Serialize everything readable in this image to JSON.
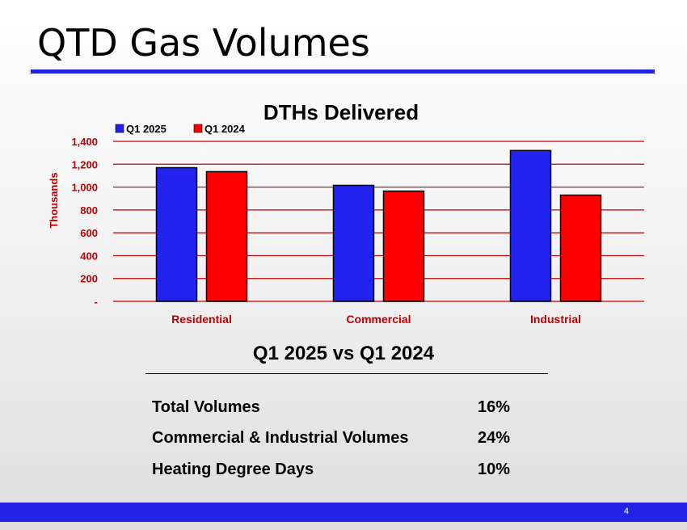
{
  "slide": {
    "title": "QTD Gas Volumes",
    "page_number": "4"
  },
  "colors": {
    "accent": "#2323e6",
    "series_q1_2025": "#2323f0",
    "series_q1_2024": "#ff0000",
    "axis_text": "#c00000",
    "gridline": "#c00000"
  },
  "chart_data": {
    "type": "bar",
    "title": "DTHs Delivered",
    "ylabel": "Thousands",
    "xlabel": "",
    "ylim": [
      0,
      1400
    ],
    "yticks": [
      0,
      200,
      400,
      600,
      800,
      1000,
      1200,
      1400
    ],
    "ytick_labels": [
      "-",
      "200",
      "400",
      "600",
      "800",
      "1,000",
      "1,200",
      "1,400"
    ],
    "categories": [
      "Residential",
      "Commercial",
      "Industrial"
    ],
    "series": [
      {
        "name": "Q1 2025",
        "values": [
          1170,
          1015,
          1320
        ]
      },
      {
        "name": "Q1 2024",
        "values": [
          1135,
          965,
          930
        ]
      }
    ],
    "legend_position": "top-left",
    "grid": true
  },
  "summary": {
    "title": "Q1 2025 vs Q1 2024",
    "rows": [
      {
        "label": "Total Volumes",
        "value": "16%"
      },
      {
        "label": "Commercial & Industrial Volumes",
        "value": "24%"
      },
      {
        "label": "Heating Degree Days",
        "value": "10%"
      }
    ]
  }
}
